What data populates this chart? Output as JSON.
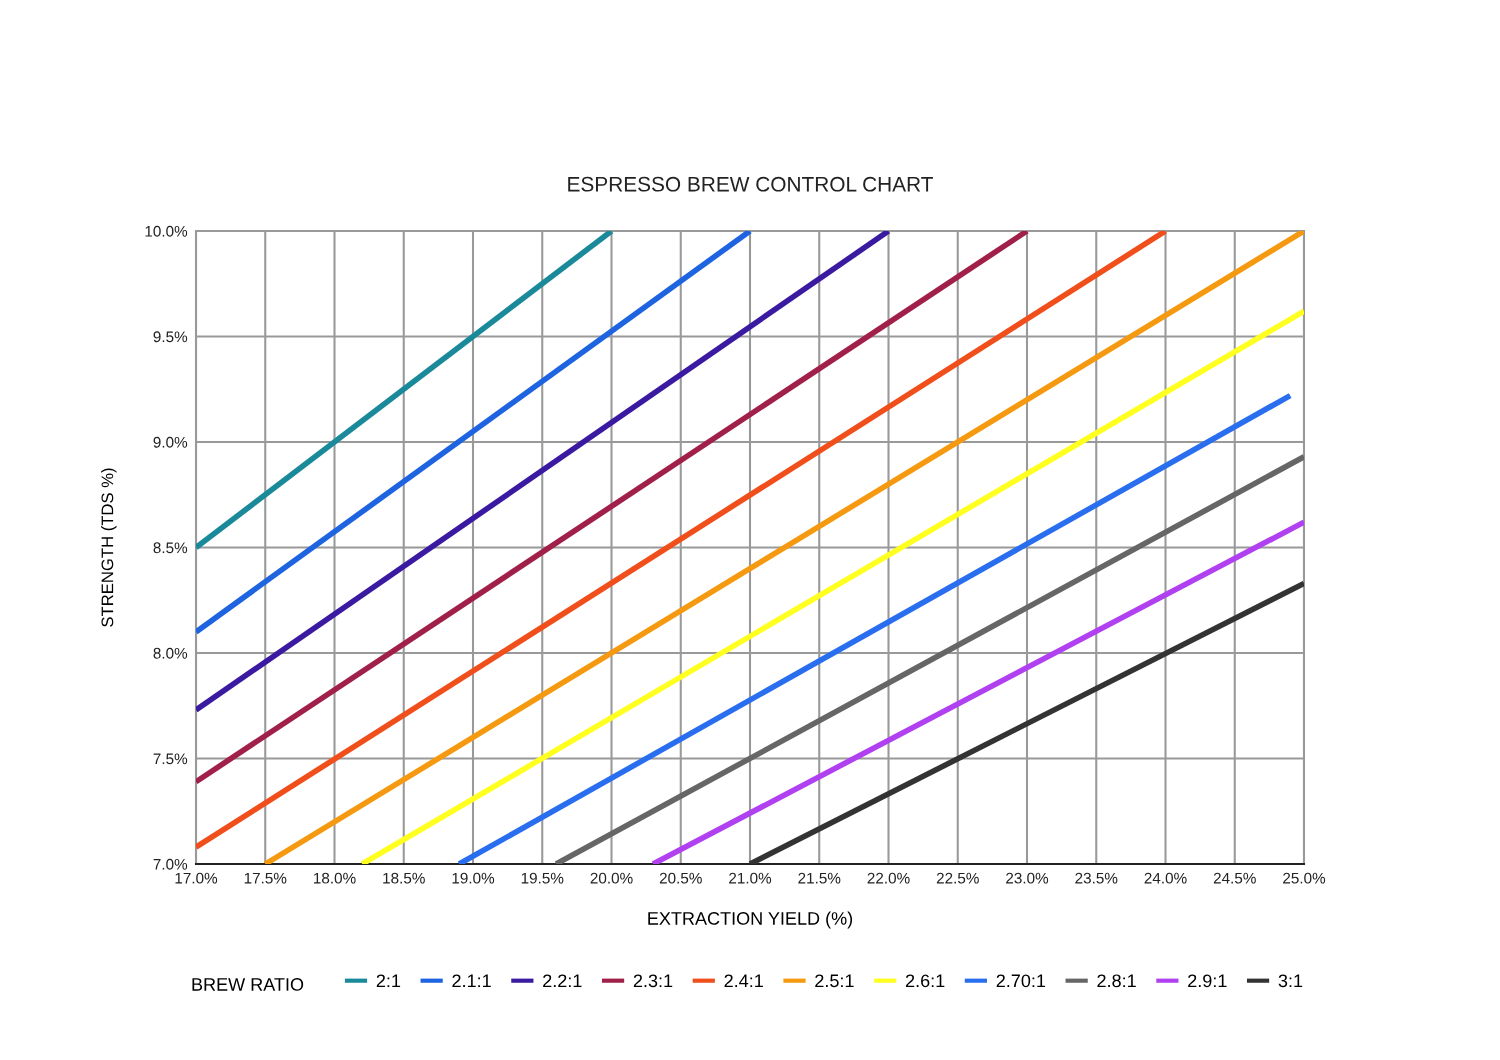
{
  "chart_data": {
    "type": "line",
    "title": "ESPRESSO BREW CONTROL CHART",
    "xlabel": "EXTRACTION YIELD (%)",
    "ylabel": "STRENGTH (TDS %)",
    "legend_title": "BREW RATIO",
    "xlim": [
      17,
      25
    ],
    "ylim": [
      7,
      10
    ],
    "xticks": [
      {
        "value": 17,
        "label": "17.0%"
      },
      {
        "value": 17.5,
        "label": "17.5%"
      },
      {
        "value": 18,
        "label": "18.0%"
      },
      {
        "value": 18.5,
        "label": "18.5%"
      },
      {
        "value": 19,
        "label": "19.0%"
      },
      {
        "value": 19.5,
        "label": "19.5%"
      },
      {
        "value": 20,
        "label": "20.0%"
      },
      {
        "value": 20.5,
        "label": "20.5%"
      },
      {
        "value": 21,
        "label": "21.0%"
      },
      {
        "value": 21.5,
        "label": "21.5%"
      },
      {
        "value": 22,
        "label": "22.0%"
      },
      {
        "value": 22.5,
        "label": "22.5%"
      },
      {
        "value": 23,
        "label": "23.0%"
      },
      {
        "value": 23.5,
        "label": "23.5%"
      },
      {
        "value": 24,
        "label": "24.0%"
      },
      {
        "value": 24.5,
        "label": "24.5%"
      },
      {
        "value": 25,
        "label": "25.0%"
      }
    ],
    "yticks": [
      {
        "value": 7,
        "label": "7.0%"
      },
      {
        "value": 7.5,
        "label": "7.5%"
      },
      {
        "value": 8,
        "label": "8.0%"
      },
      {
        "value": 8.5,
        "label": "8.5%"
      },
      {
        "value": 9,
        "label": "9.0%"
      },
      {
        "value": 9.5,
        "label": "9.5%"
      },
      {
        "value": 10,
        "label": "10.0%"
      }
    ],
    "grid": true,
    "legend": "bottom",
    "marker": "none",
    "line_style": "solid",
    "series": [
      {
        "name": "2:1",
        "color": "#1a8a9a",
        "x": [
          17,
          20
        ],
        "values": [
          8.5,
          10
        ]
      },
      {
        "name": "2.1:1",
        "color": "#1e63e0",
        "x": [
          17,
          21
        ],
        "values": [
          8.1,
          10
        ]
      },
      {
        "name": "2.2:1",
        "color": "#3a1aa0",
        "x": [
          17,
          22
        ],
        "values": [
          7.73,
          10
        ]
      },
      {
        "name": "2.3:1",
        "color": "#a0204a",
        "x": [
          17,
          23
        ],
        "values": [
          7.39,
          10
        ]
      },
      {
        "name": "2.4:1",
        "color": "#f04e1a",
        "x": [
          17,
          24
        ],
        "values": [
          7.08,
          10
        ]
      },
      {
        "name": "2.5:1",
        "color": "#f59a10",
        "x": [
          17.5,
          25
        ],
        "values": [
          7,
          10
        ]
      },
      {
        "name": "2.6:1",
        "color": "#ffff20",
        "x": [
          18.2,
          25
        ],
        "values": [
          7,
          9.62
        ]
      },
      {
        "name": "2.70:1",
        "color": "#2a6ef0",
        "x": [
          18.9,
          24.9
        ],
        "values": [
          7,
          9.22
        ]
      },
      {
        "name": "2.8:1",
        "color": "#666666",
        "x": [
          19.6,
          25
        ],
        "values": [
          7,
          8.93
        ]
      },
      {
        "name": "2.9:1",
        "color": "#b040f0",
        "x": [
          20.3,
          25
        ],
        "values": [
          7,
          8.62
        ]
      },
      {
        "name": "3:1",
        "color": "#333333",
        "x": [
          21,
          25
        ],
        "values": [
          7,
          8.33
        ]
      }
    ]
  }
}
